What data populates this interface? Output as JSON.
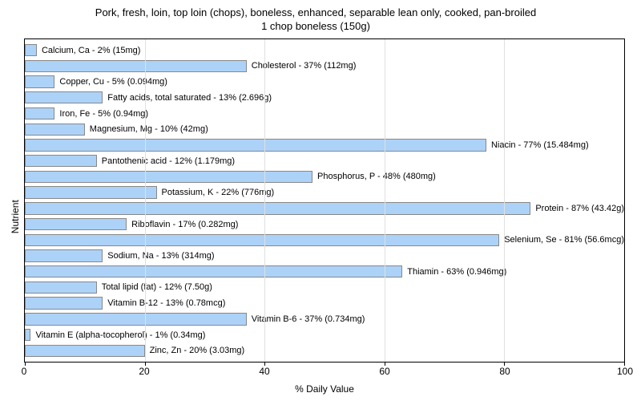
{
  "chart": {
    "type": "bar",
    "title_line1": "Pork, fresh, loin, top loin (chops), boneless, enhanced, separable lean only, cooked, pan-broiled",
    "title_line2": "1 chop boneless (150g)",
    "title_fontsize": 13,
    "y_axis_label": "Nutrient",
    "x_axis_label": "% Daily Value",
    "label_fontsize": 12,
    "bar_label_fontsize": 11,
    "xlim": [
      0,
      100
    ],
    "xtick_step": 20,
    "xticks": [
      0,
      20,
      40,
      60,
      80,
      100
    ],
    "background_color": "#ffffff",
    "grid_color": "#e0e0e0",
    "axis_color": "#000000",
    "bar_color": "#add2f7",
    "bar_border_color": "#888888",
    "text_color": "#000000",
    "bar_height_pct": 78,
    "nutrients": [
      {
        "label": "Calcium, Ca - 2% (15mg)",
        "value": 2
      },
      {
        "label": "Cholesterol - 37% (112mg)",
        "value": 37
      },
      {
        "label": "Copper, Cu - 5% (0.094mg)",
        "value": 5
      },
      {
        "label": "Fatty acids, total saturated - 13% (2.696g)",
        "value": 13
      },
      {
        "label": "Iron, Fe - 5% (0.94mg)",
        "value": 5
      },
      {
        "label": "Magnesium, Mg - 10% (42mg)",
        "value": 10
      },
      {
        "label": "Niacin - 77% (15.484mg)",
        "value": 77
      },
      {
        "label": "Pantothenic acid - 12% (1.179mg)",
        "value": 12
      },
      {
        "label": "Phosphorus, P - 48% (480mg)",
        "value": 48
      },
      {
        "label": "Potassium, K - 22% (776mg)",
        "value": 22
      },
      {
        "label": "Protein - 87% (43.42g)",
        "value": 87
      },
      {
        "label": "Riboflavin - 17% (0.282mg)",
        "value": 17
      },
      {
        "label": "Selenium, Se - 81% (56.6mcg)",
        "value": 81
      },
      {
        "label": "Sodium, Na - 13% (314mg)",
        "value": 13
      },
      {
        "label": "Thiamin - 63% (0.946mg)",
        "value": 63
      },
      {
        "label": "Total lipid (fat) - 12% (7.50g)",
        "value": 12
      },
      {
        "label": "Vitamin B-12 - 13% (0.78mcg)",
        "value": 13
      },
      {
        "label": "Vitamin B-6 - 37% (0.734mg)",
        "value": 37
      },
      {
        "label": "Vitamin E (alpha-tocopherol) - 1% (0.34mg)",
        "value": 1
      },
      {
        "label": "Zinc, Zn - 20% (3.03mg)",
        "value": 20
      }
    ]
  }
}
